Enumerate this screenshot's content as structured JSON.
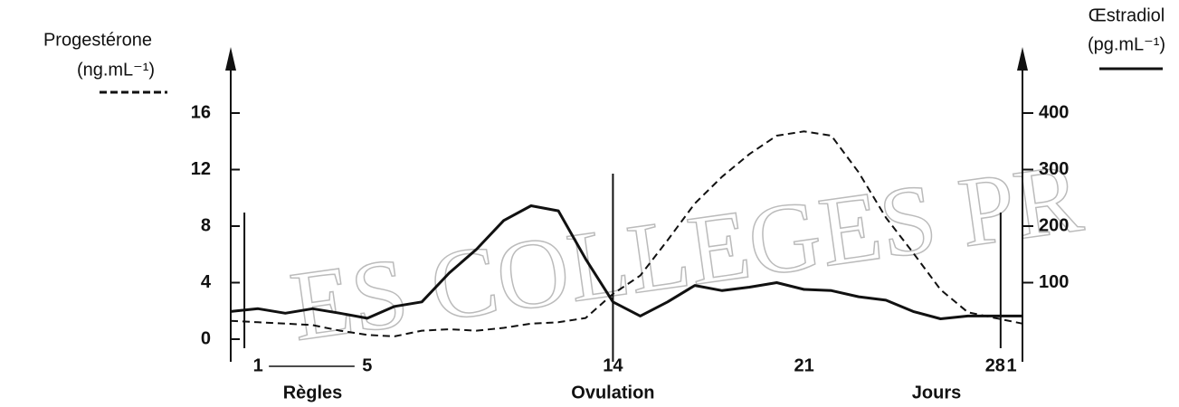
{
  "chart_data": {
    "type": "line",
    "x": [
      0,
      1,
      2,
      3,
      4,
      5,
      6,
      7,
      8,
      9,
      10,
      11,
      12,
      13,
      14,
      15,
      16,
      17,
      18,
      19,
      20,
      21,
      22,
      23,
      24,
      25,
      26,
      27,
      28,
      29
    ],
    "xlim": [
      0,
      29
    ],
    "xticks": [
      1,
      5,
      14,
      21,
      28,
      {
        "value": 29,
        "label": "1"
      }
    ],
    "xlabel": "Jours",
    "ylim": [
      0,
      16
    ],
    "yticks": [
      0,
      4,
      8,
      12,
      16
    ],
    "ylabel_unit": "(ng.mL⁻¹)",
    "y2lim": [
      0,
      400
    ],
    "y2ticks": [
      100,
      200,
      300,
      400
    ],
    "y2label_unit": "(pg.mL⁻¹)",
    "vlines": [
      0.5,
      14,
      28.2
    ],
    "annotations": [
      {
        "text": "Règles",
        "x": [
          1,
          5
        ]
      },
      {
        "text": "Ovulation",
        "x": 14
      }
    ],
    "watermark": "ES COLLEGES PR",
    "series": [
      {
        "name": "Progestérone",
        "color": "#111111",
        "dash": true,
        "values": [
          1.3,
          1.2,
          1.1,
          1.0,
          0.6,
          0.3,
          0.2,
          0.6,
          0.7,
          0.6,
          0.8,
          1.1,
          1.2,
          1.5,
          3.2,
          4.5,
          7.0,
          9.6,
          11.5,
          13.1,
          14.4,
          14.7,
          14.4,
          11.8,
          8.6,
          6.1,
          3.5,
          1.9,
          1.5,
          1.1
        ]
      },
      {
        "name": "Œstradiol",
        "color": "#111111",
        "dash": false,
        "axis": "y2",
        "values": [
          49,
          54,
          46,
          54,
          46,
          37,
          58,
          66,
          117,
          159,
          210,
          236,
          227,
          142,
          66,
          41,
          66,
          95,
          86,
          92,
          100,
          88,
          86,
          75,
          69,
          49,
          36,
          41,
          41,
          41
        ]
      }
    ]
  }
}
